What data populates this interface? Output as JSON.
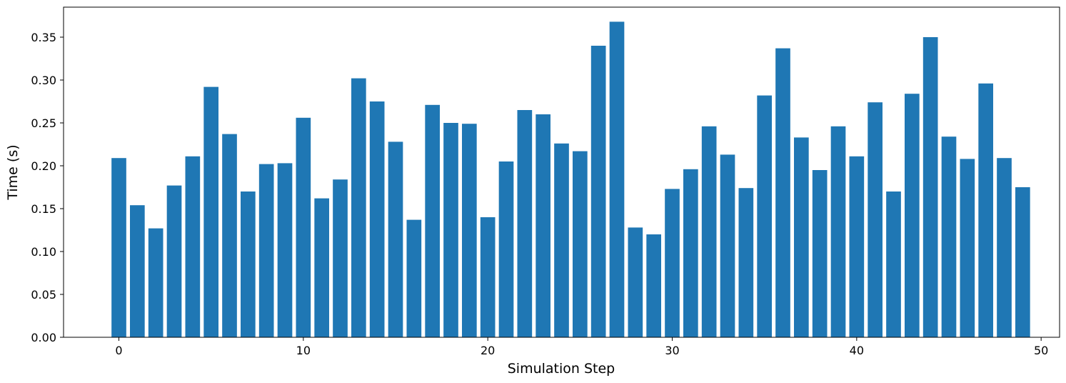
{
  "chart_data": {
    "type": "bar",
    "title": "",
    "xlabel": "Simulation Step",
    "ylabel": "Time (s)",
    "bar_color": "#1f77b4",
    "grid": false,
    "xlim": [
      -3.0,
      51.0
    ],
    "ylim": [
      0,
      0.385
    ],
    "xticks": [
      0,
      10,
      20,
      30,
      40,
      50
    ],
    "xtick_labels": [
      "0",
      "10",
      "20",
      "30",
      "40",
      "50"
    ],
    "yticks": [
      0,
      0.05,
      0.1,
      0.15,
      0.2,
      0.25,
      0.3,
      0.35
    ],
    "ytick_labels": [
      "0.00",
      "0.05",
      "0.10",
      "0.15",
      "0.20",
      "0.25",
      "0.30",
      "0.35"
    ],
    "categories": [
      0,
      1,
      2,
      3,
      4,
      5,
      6,
      7,
      8,
      9,
      10,
      11,
      12,
      13,
      14,
      15,
      16,
      17,
      18,
      19,
      20,
      21,
      22,
      23,
      24,
      25,
      26,
      27,
      28,
      29,
      30,
      31,
      32,
      33,
      34,
      35,
      36,
      37,
      38,
      39,
      40,
      41,
      42,
      43,
      44,
      45,
      46,
      47,
      48,
      49
    ],
    "values": [
      0.209,
      0.154,
      0.127,
      0.177,
      0.211,
      0.292,
      0.237,
      0.17,
      0.202,
      0.203,
      0.256,
      0.162,
      0.184,
      0.302,
      0.275,
      0.228,
      0.137,
      0.271,
      0.25,
      0.249,
      0.14,
      0.205,
      0.265,
      0.26,
      0.226,
      0.217,
      0.34,
      0.368,
      0.128,
      0.12,
      0.173,
      0.196,
      0.246,
      0.213,
      0.174,
      0.282,
      0.337,
      0.233,
      0.195,
      0.246,
      0.211,
      0.274,
      0.17,
      0.284,
      0.35,
      0.234,
      0.208,
      0.296,
      0.209,
      0.175
    ]
  }
}
